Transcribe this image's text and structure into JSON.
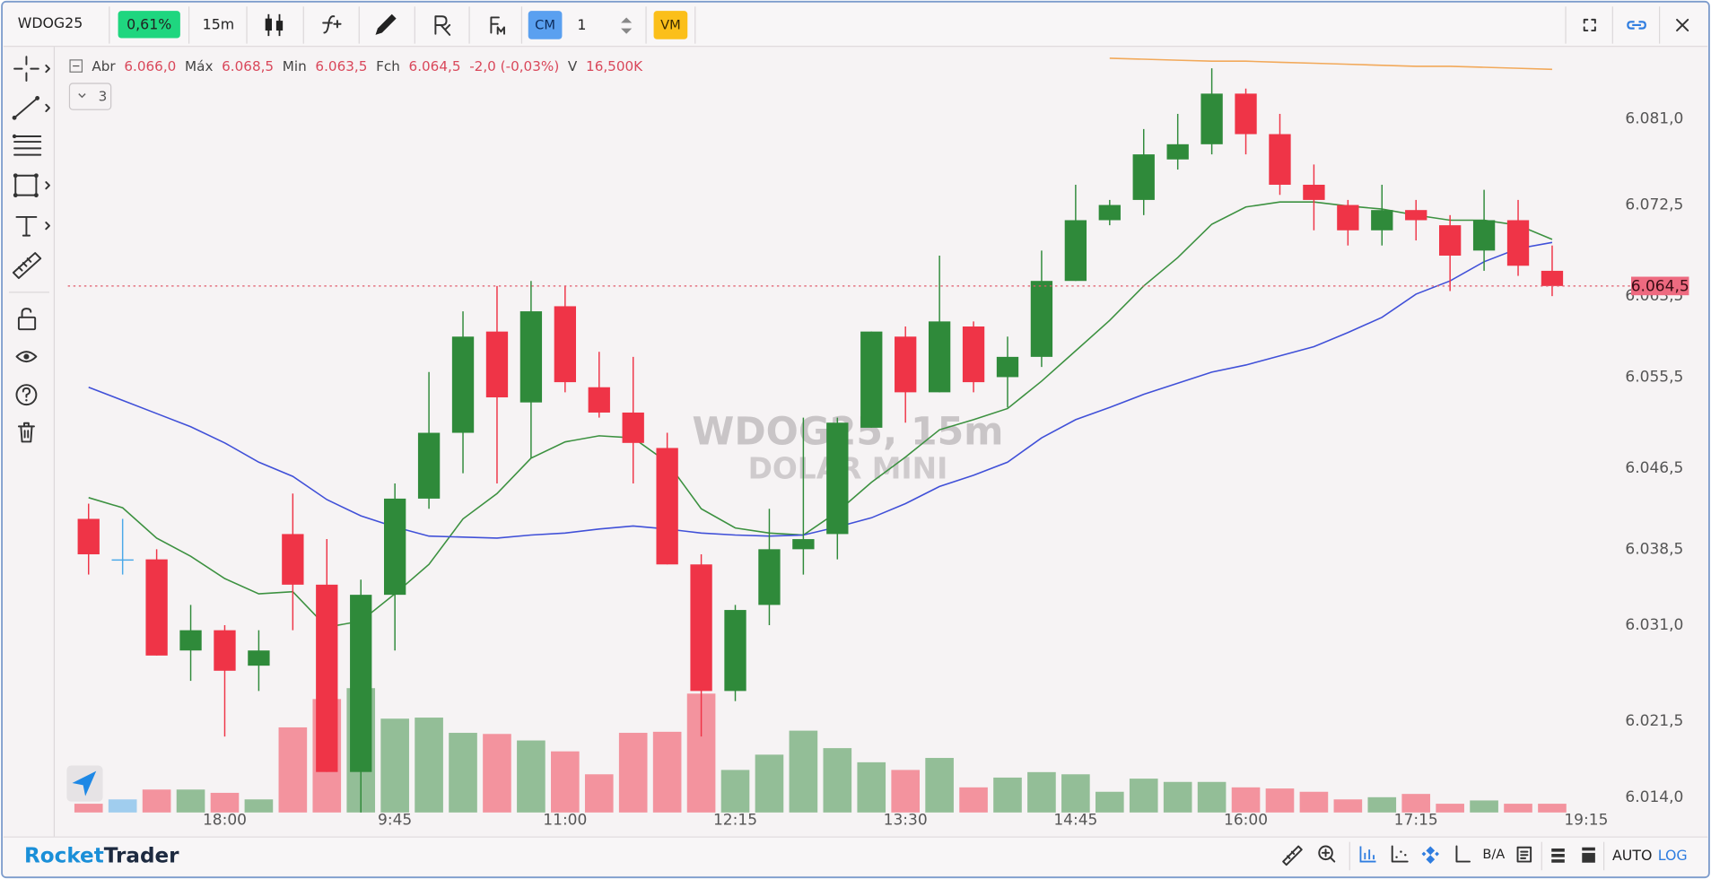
{
  "toolbar": {
    "symbol": "WDOG25",
    "change": "0,61%",
    "timeframe": "15m",
    "cm": "CM",
    "quantity": 1,
    "vm": "VM"
  },
  "legend": {
    "open_label": "Abr",
    "open": "6.066,0",
    "high_label": "Máx",
    "high": "6.068,5",
    "low_label": "Min",
    "low": "6.063,5",
    "close_label": "Fch",
    "close": "6.064,5",
    "change": "-2,0 (-0,03%)",
    "volume_label": "V",
    "volume": "16,500K"
  },
  "collapse_count": 3,
  "watermark": {
    "symbol": "WDOG25, 15m",
    "name": "DOLAR MINI"
  },
  "footer": {
    "brand_part1": "Rocket",
    "brand_part2": "Trader",
    "ba": "B/A",
    "auto": "AUTO",
    "log": "LOG"
  },
  "chart_data": {
    "type": "candlestick",
    "categories": [
      null,
      null,
      null,
      null,
      "18:00",
      null,
      null,
      null,
      null,
      "9:45",
      null,
      null,
      null,
      null,
      "11:00",
      null,
      null,
      null,
      null,
      "12:15",
      null,
      null,
      null,
      null,
      "13:30",
      null,
      null,
      null,
      null,
      "14:45",
      null,
      null,
      null,
      null,
      "16:00",
      null,
      null,
      null,
      null,
      "17:15",
      null,
      null,
      null,
      null,
      "19:15"
    ],
    "open": [
      6041.5,
      6037.5,
      6037.5,
      6028.5,
      6030.5,
      6027.0,
      6040.0,
      6035.0,
      6016.5,
      6034.0,
      6043.5,
      6050.0,
      6060.0,
      6053.0,
      6062.5,
      6054.5,
      6052.0,
      6048.5,
      6037.0,
      6024.5,
      6033.0,
      6038.5,
      6040.0,
      6050.5,
      6059.5,
      6054.0,
      6060.5,
      6055.5,
      6057.5,
      6065.0,
      6071.0,
      6073.0,
      6077.0,
      6078.5,
      6083.5,
      6079.5,
      6074.5,
      6072.5,
      6070.0,
      6072.0,
      6070.5,
      6068.0,
      6071.0,
      6066.0,
      null
    ],
    "high": [
      6043.0,
      6041.5,
      6038.5,
      6033.0,
      6031.0,
      6030.5,
      6044.0,
      6039.5,
      6035.5,
      6045.0,
      6056.0,
      6062.0,
      6064.5,
      6065.0,
      6064.5,
      6058.0,
      6057.5,
      6050.0,
      6038.0,
      6033.0,
      6042.5,
      6051.5,
      6051.5,
      6060.0,
      6060.5,
      6067.5,
      6061.0,
      6059.5,
      6068.0,
      6074.5,
      6073.0,
      6080.0,
      6081.5,
      6086.0,
      6084.0,
      6081.5,
      6076.5,
      6073.0,
      6074.5,
      6073.0,
      6071.5,
      6074.0,
      6073.0,
      6068.5,
      null
    ],
    "low": [
      6036.0,
      6036.0,
      6028.0,
      6025.5,
      6020.0,
      6024.5,
      6030.5,
      6016.5,
      6012.5,
      6028.5,
      6042.5,
      6046.0,
      6045.0,
      6047.5,
      6054.0,
      6051.5,
      6045.0,
      6037.0,
      6020.0,
      6023.5,
      6031.0,
      6036.0,
      6037.5,
      6050.5,
      6051.0,
      6054.0,
      6054.0,
      6052.5,
      6056.5,
      6065.0,
      6070.5,
      6071.5,
      6076.0,
      6077.5,
      6077.5,
      6073.5,
      6070.0,
      6068.5,
      6068.5,
      6069.0,
      6064.0,
      6066.0,
      6065.5,
      6063.5,
      null
    ],
    "close": [
      6038.0,
      6037.5,
      6028.0,
      6030.5,
      6026.5,
      6028.5,
      6035.0,
      6016.5,
      6034.0,
      6043.5,
      6050.0,
      6059.5,
      6053.5,
      6062.0,
      6055.0,
      6052.0,
      6049.0,
      6037.0,
      6024.5,
      6032.5,
      6038.5,
      6039.5,
      6051.0,
      6060.0,
      6054.0,
      6061.0,
      6055.0,
      6057.5,
      6065.0,
      6071.0,
      6072.5,
      6077.5,
      6078.5,
      6083.5,
      6079.5,
      6074.5,
      6073.0,
      6070.0,
      6072.0,
      6071.0,
      6067.5,
      6071.0,
      6066.5,
      6064.5,
      null
    ],
    "volume": [
      16.5,
      24.7,
      43.3,
      43.3,
      37.1,
      24.7,
      160.7,
      214.2,
      234.8,
      177.2,
      179.2,
      150.4,
      148.3,
      136.0,
      115.4,
      72.1,
      150.4,
      152.4,
      224.5,
      80.3,
      109.2,
      154.5,
      121.5,
      94.8,
      80.3,
      103.0,
      47.4,
      65.9,
      76.2,
      72.1,
      39.1,
      63.9,
      57.7,
      57.7,
      47.4,
      45.3,
      39.1,
      24.7,
      28.8,
      35.0,
      16.5,
      22.7,
      16.5,
      16.5,
      null
    ],
    "up_color": "#2f8a3a",
    "down_color": "#ef3447",
    "doji_color": "#4aa8e8",
    "lines": [
      {
        "color": "#3c9140",
        "values": [
          6043.6,
          6042.6,
          6039.6,
          6037.8,
          6035.6,
          6034.1,
          6034.3,
          6030.8,
          6031.4,
          6034.1,
          6037.0,
          6041.5,
          6044.0,
          6047.5,
          6049.1,
          6049.7,
          6049.5,
          6047.1,
          6042.5,
          6040.6,
          6040.1,
          6039.9,
          6042.2,
          6045.1,
          6047.6,
          6050.3,
          6051.3,
          6052.4,
          6055.1,
          6058.1,
          6061.1,
          6064.5,
          6067.3,
          6070.6,
          6072.3,
          6072.8,
          6072.8,
          6072.4,
          6072.1,
          6071.5,
          6071.0,
          6071.0,
          6070.5,
          6069.1,
          null
        ]
      },
      {
        "color": "#4050d8",
        "values": [
          6054.5,
          6053.2,
          6051.9,
          6050.6,
          6049.0,
          6047.1,
          6045.7,
          6043.4,
          6041.8,
          6040.7,
          6039.8,
          6039.7,
          6039.6,
          6039.9,
          6040.1,
          6040.5,
          6040.8,
          6040.5,
          6040.1,
          6039.9,
          6039.8,
          6039.9,
          6040.7,
          6041.6,
          6043.0,
          6044.7,
          6045.8,
          6047.1,
          6049.5,
          6051.3,
          6052.5,
          6053.8,
          6054.9,
          6056.0,
          6056.7,
          6057.6,
          6058.5,
          6059.9,
          6061.4,
          6063.7,
          6065.0,
          6066.9,
          6068.2,
          6068.8,
          null
        ]
      },
      {
        "color": "#f2a95a",
        "values": [
          null,
          null,
          null,
          null,
          null,
          null,
          null,
          null,
          null,
          null,
          null,
          null,
          null,
          null,
          null,
          null,
          null,
          null,
          null,
          null,
          null,
          null,
          null,
          null,
          null,
          null,
          null,
          null,
          null,
          null,
          6087.0,
          6086.9,
          6086.8,
          6086.7,
          6086.7,
          6086.6,
          6086.5,
          6086.4,
          6086.3,
          6086.2,
          6086.2,
          6086.1,
          6086.0,
          6085.9,
          null
        ]
      }
    ],
    "ylim": [
      6012.5,
      6087.9
    ],
    "yticks": [
      {
        "value": 6014,
        "label": "6.014,0"
      },
      {
        "value": 6021.5,
        "label": "6.021,5"
      },
      {
        "value": 6031,
        "label": "6.031,0"
      },
      {
        "value": 6038.5,
        "label": "6.038,5"
      },
      {
        "value": 6046.5,
        "label": "6.046,5"
      },
      {
        "value": 6055.5,
        "label": "6.055,5"
      },
      {
        "value": 6063.5,
        "label": "6.063,5"
      },
      {
        "value": 6072.5,
        "label": "6.072,5"
      },
      {
        "value": 6081,
        "label": "6.081,0"
      }
    ],
    "grid": false,
    "last_price": {
      "value": 6064.5,
      "label": "6.064,5"
    }
  }
}
